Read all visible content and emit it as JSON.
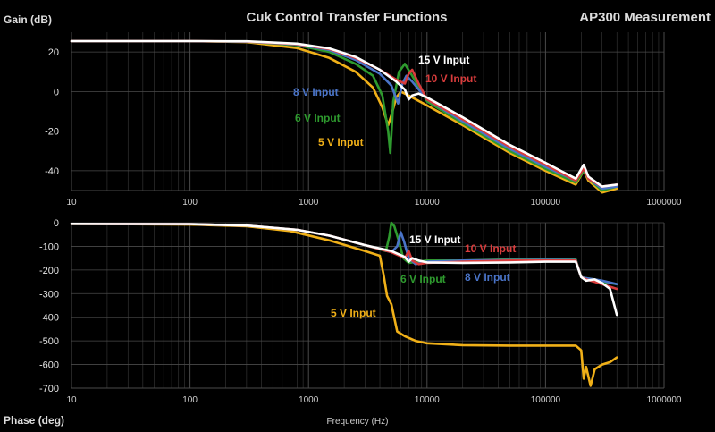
{
  "header": {
    "title": "Cuk Control Transfer Functions",
    "right_title": "AP300 Measurement"
  },
  "colors": {
    "background": "#000000",
    "grid": "#3a3a3a",
    "text": "#dcdcdc",
    "input_5v": "#f0b018",
    "input_6v": "#2e9a2e",
    "input_8v": "#4a74c8",
    "input_10v": "#d83c3c",
    "input_15v": "#ffffff"
  },
  "chart_data": [
    {
      "type": "line",
      "name": "gain",
      "x_scale": "log",
      "xlim": [
        10,
        1000000
      ],
      "ylim": [
        -50,
        30
      ],
      "ylabel": "Gain (dB)",
      "x_ticks": [
        "10",
        "100",
        "1000",
        "10000",
        "100000",
        "1000000"
      ],
      "y_ticks": [
        "20",
        "0",
        "-20",
        "-40"
      ],
      "series": [
        {
          "name": "5 V Input",
          "color": "#f0b018",
          "label_pos": "mid-left",
          "x": [
            10,
            100,
            300,
            800,
            1500,
            2500,
            3500,
            4200,
            4700,
            5000,
            5500,
            6000,
            7000,
            10000,
            20000,
            50000,
            100000,
            180000,
            210000,
            230000,
            300000,
            400000
          ],
          "y": [
            25.5,
            25.5,
            25,
            22,
            17,
            10,
            2,
            -8,
            -17,
            -12,
            -3,
            0,
            -2,
            -7,
            -17,
            -31,
            -40,
            -47,
            -40,
            -45,
            -51,
            -49
          ]
        },
        {
          "name": "6 V Input",
          "color": "#2e9a2e",
          "x": [
            10,
            100,
            300,
            800,
            1500,
            2500,
            3500,
            4200,
            4700,
            4900,
            5200,
            5800,
            6500,
            7500,
            10000,
            20000,
            50000,
            100000,
            180000,
            210000,
            230000,
            300000,
            400000
          ],
          "y": [
            25.5,
            25.5,
            25.2,
            23.5,
            20,
            14,
            8,
            -2,
            -20,
            -31,
            -5,
            10,
            14,
            8,
            -5,
            -16,
            -30,
            -39,
            -46,
            -40,
            -44,
            -50,
            -48
          ]
        },
        {
          "name": "8 V Input",
          "color": "#4a74c8",
          "x": [
            10,
            100,
            300,
            800,
            1500,
            2500,
            4000,
            5000,
            5700,
            6200,
            6700,
            7500,
            10000,
            20000,
            50000,
            100000,
            180000,
            210000,
            230000,
            300000,
            400000
          ],
          "y": [
            25.5,
            25.5,
            25.2,
            23.8,
            21,
            16,
            9,
            3,
            -6,
            4,
            8,
            5,
            -4,
            -15,
            -29,
            -38,
            -45,
            -39,
            -44,
            -49,
            -48
          ]
        },
        {
          "name": "10 V Input",
          "color": "#d83c3c",
          "x": [
            10,
            100,
            300,
            800,
            1500,
            2500,
            4000,
            5500,
            6500,
            7000,
            7500,
            8500,
            10000,
            20000,
            50000,
            100000,
            180000,
            210000,
            230000,
            300000,
            400000
          ],
          "y": [
            25.5,
            25.5,
            25.3,
            24,
            21.5,
            17,
            11,
            6,
            4,
            9,
            11,
            4,
            -4,
            -14,
            -28,
            -37,
            -45,
            -39,
            -44,
            -48,
            -47
          ]
        },
        {
          "name": "15 V Input",
          "color": "#ffffff",
          "x": [
            10,
            100,
            300,
            800,
            1500,
            2500,
            4000,
            5500,
            6500,
            7000,
            7500,
            8500,
            10000,
            20000,
            50000,
            100000,
            180000,
            210000,
            230000,
            300000,
            400000
          ],
          "y": [
            25.5,
            25.5,
            25.4,
            24.2,
            21.8,
            17.5,
            11,
            5,
            1,
            -4,
            -2,
            -1,
            -3,
            -13,
            -27,
            -36,
            -44,
            -37,
            -43,
            -48,
            -47
          ]
        }
      ]
    },
    {
      "type": "line",
      "name": "phase",
      "x_scale": "log",
      "xlim": [
        10,
        1000000
      ],
      "ylim": [
        -700,
        0
      ],
      "ylabel": "Phase (deg)",
      "xlabel": "Frequency (Hz)",
      "x_ticks": [
        "10",
        "100",
        "1000",
        "10000",
        "100000",
        "1000000"
      ],
      "y_ticks": [
        "0",
        "-100",
        "-200",
        "-300",
        "-400",
        "-500",
        "-600",
        "-700"
      ],
      "series": [
        {
          "name": "5 V Input",
          "color": "#f0b018",
          "x": [
            10,
            100,
            300,
            700,
            1500,
            3000,
            4000,
            4300,
            4600,
            5000,
            5600,
            6500,
            8000,
            10000,
            20000,
            50000,
            100000,
            180000,
            200000,
            210000,
            220000,
            240000,
            260000,
            300000,
            350000,
            400000
          ],
          "y": [
            -5,
            -8,
            -15,
            -35,
            -75,
            -120,
            -140,
            -220,
            -310,
            -345,
            -460,
            -480,
            -500,
            -510,
            -518,
            -520,
            -520,
            -520,
            -540,
            -660,
            -610,
            -690,
            -620,
            -600,
            -590,
            -570
          ]
        },
        {
          "name": "6 V Input",
          "color": "#2e9a2e",
          "x": [
            10,
            100,
            300,
            800,
            1500,
            3000,
            4500,
            4800,
            5000,
            5300,
            5800,
            6300,
            7000,
            10000,
            20000,
            50000,
            100000,
            180000,
            200000,
            220000,
            260000,
            300000,
            400000
          ],
          "y": [
            -5,
            -6,
            -12,
            -30,
            -55,
            -95,
            -120,
            -60,
            0,
            -15,
            -80,
            -150,
            -170,
            -160,
            -160,
            -155,
            -155,
            -155,
            -230,
            -235,
            -240,
            -250,
            -260
          ]
        },
        {
          "name": "8 V Input",
          "color": "#4a74c8",
          "x": [
            10,
            100,
            300,
            800,
            1500,
            3000,
            5000,
            5600,
            6000,
            6400,
            7000,
            8000,
            10000,
            20000,
            50000,
            100000,
            180000,
            200000,
            220000,
            260000,
            300000,
            400000
          ],
          "y": [
            -5,
            -6,
            -12,
            -30,
            -55,
            -95,
            -125,
            -100,
            -40,
            -80,
            -150,
            -175,
            -165,
            -160,
            -158,
            -157,
            -158,
            -230,
            -235,
            -240,
            -245,
            -260
          ]
        },
        {
          "name": "10 V Input",
          "color": "#d83c3c",
          "x": [
            10,
            100,
            300,
            800,
            1500,
            3000,
            5000,
            6500,
            7000,
            7500,
            8500,
            10000,
            20000,
            50000,
            100000,
            180000,
            200000,
            220000,
            260000,
            300000,
            400000
          ],
          "y": [
            -5,
            -6,
            -12,
            -30,
            -55,
            -95,
            -125,
            -150,
            -120,
            -160,
            -175,
            -170,
            -165,
            -160,
            -160,
            -160,
            -230,
            -240,
            -250,
            -260,
            -280
          ]
        },
        {
          "name": "15 V Input",
          "color": "#ffffff",
          "x": [
            10,
            100,
            300,
            800,
            1500,
            3000,
            5000,
            6500,
            7000,
            7500,
            8500,
            10000,
            20000,
            50000,
            100000,
            180000,
            200000,
            220000,
            260000,
            300000,
            350000,
            400000
          ],
          "y": [
            -5,
            -6,
            -12,
            -30,
            -55,
            -95,
            -120,
            -145,
            -165,
            -150,
            -160,
            -168,
            -170,
            -168,
            -165,
            -165,
            -230,
            -245,
            -240,
            -255,
            -280,
            -390
          ]
        }
      ]
    }
  ]
}
